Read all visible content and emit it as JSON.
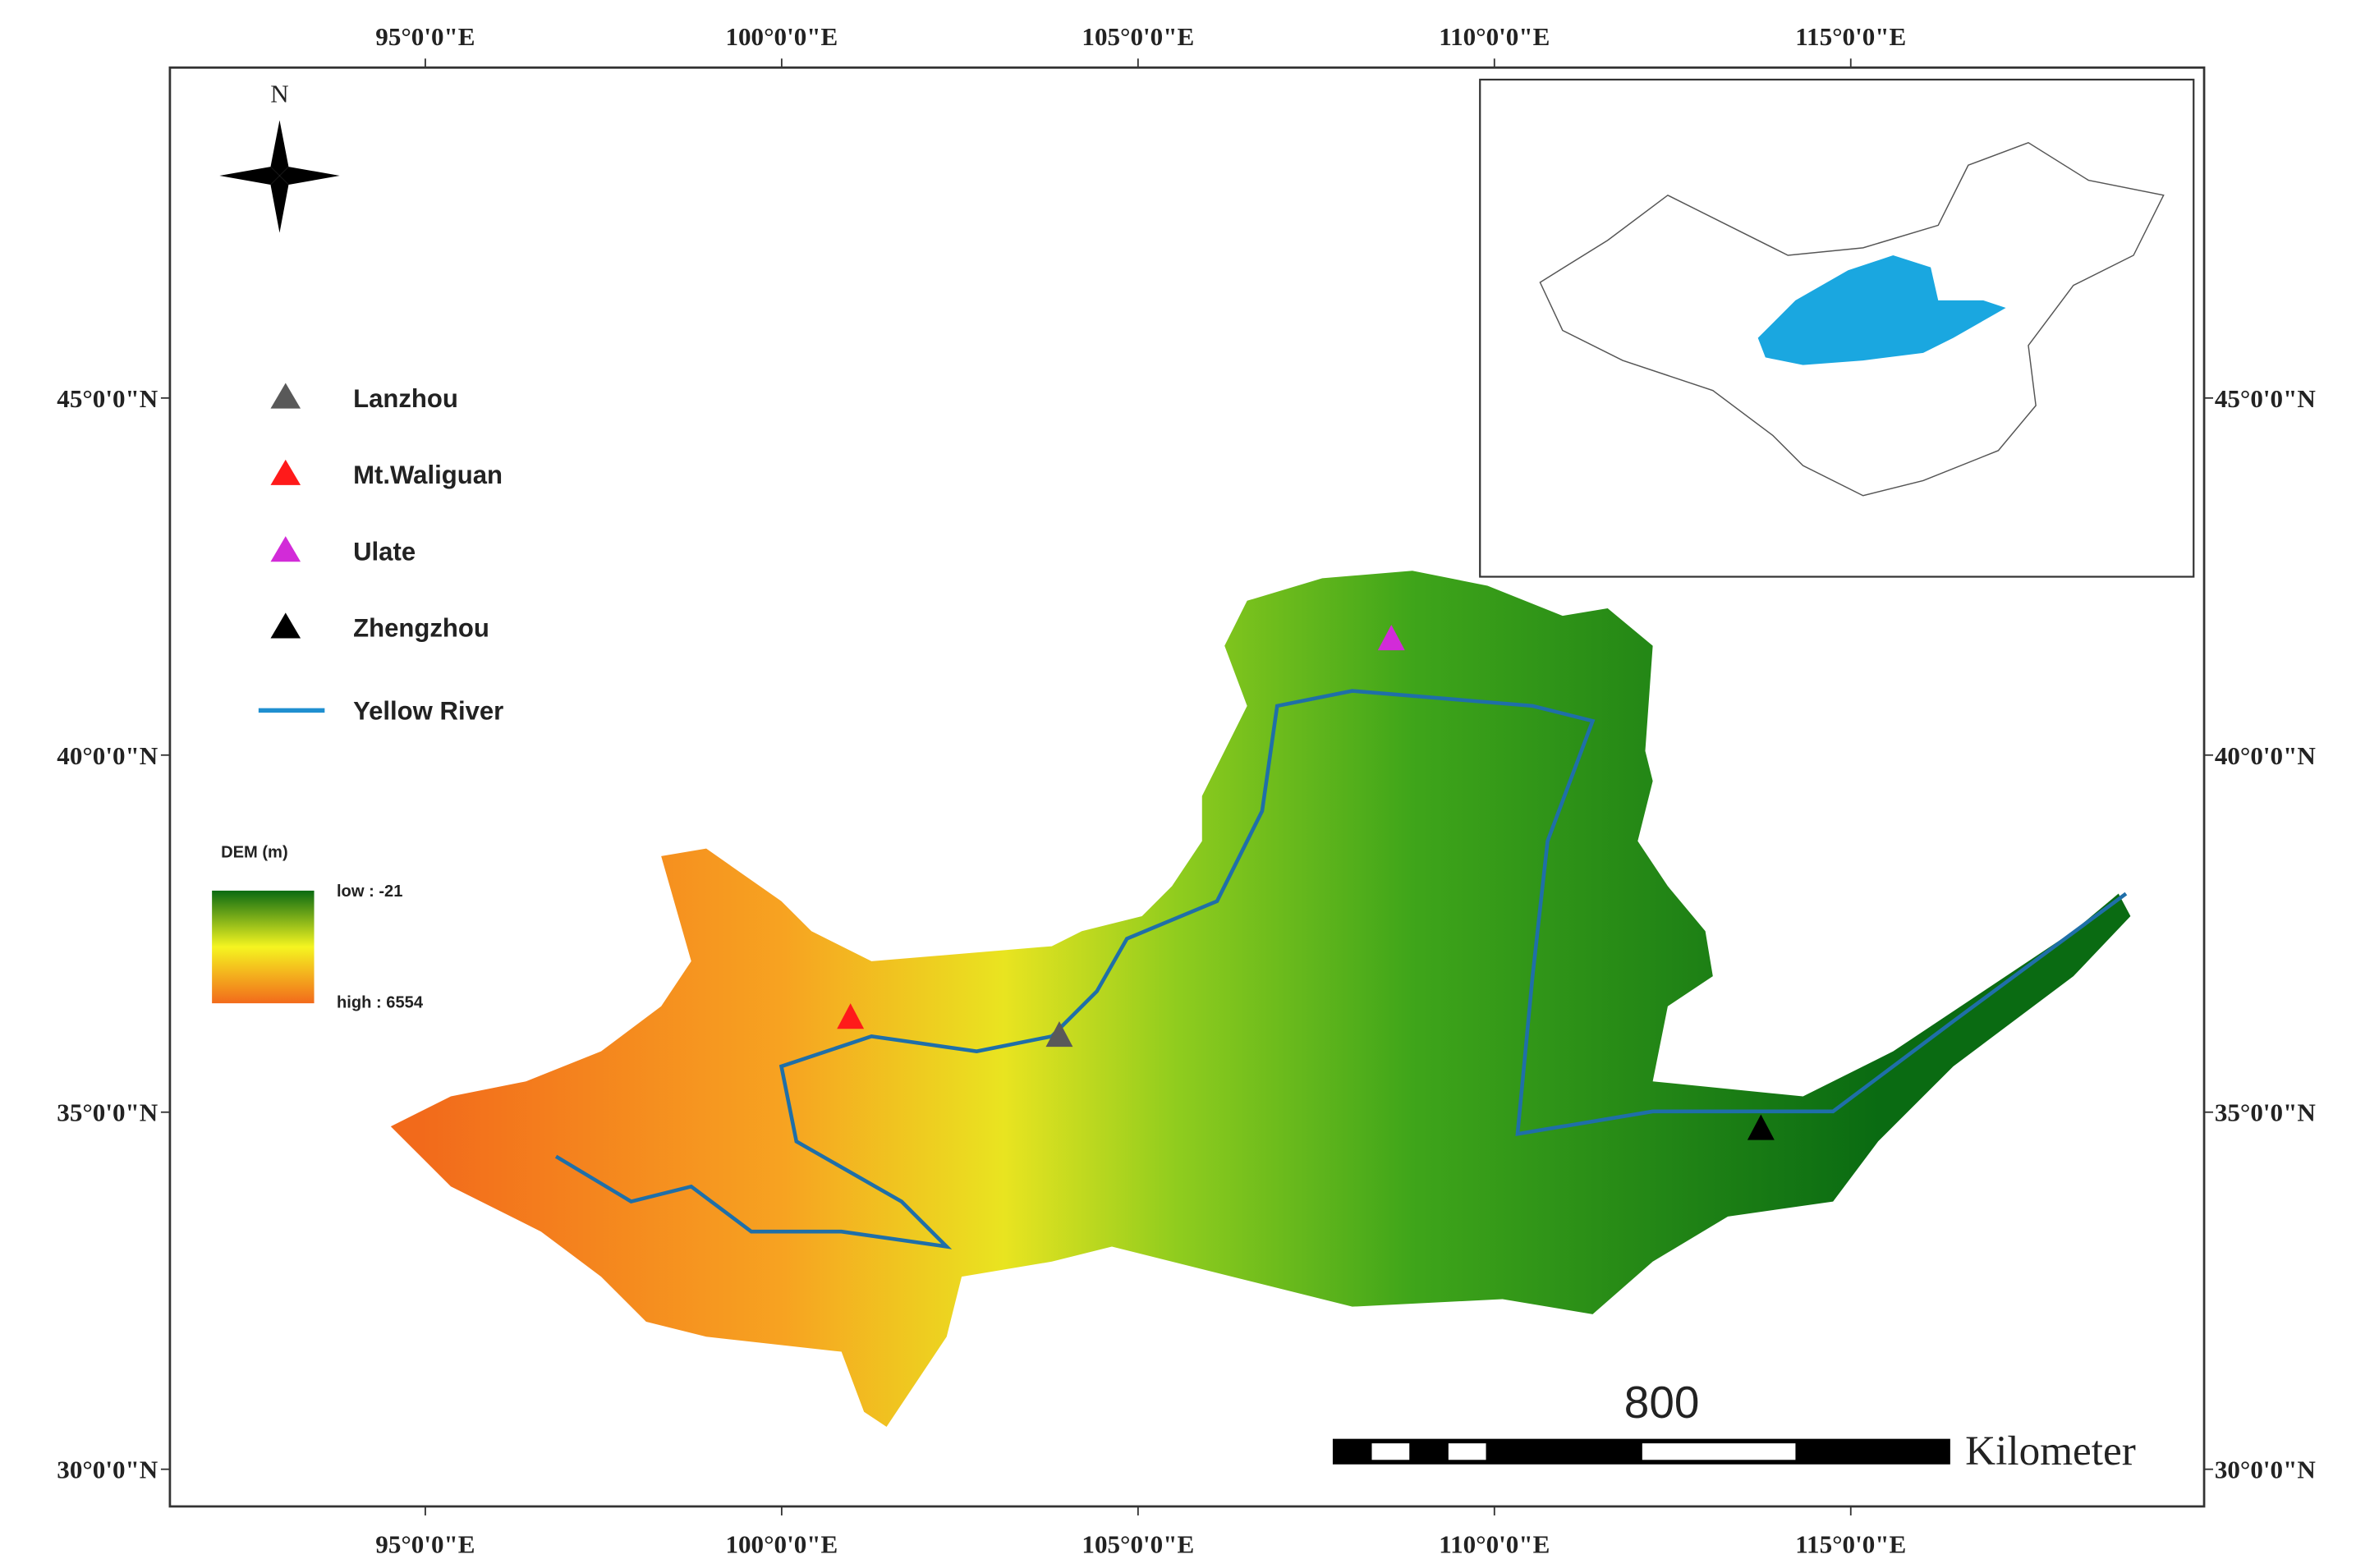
{
  "map": {
    "lon_ticks": [
      {
        "value": 95,
        "label": "95°0'0\"E"
      },
      {
        "value": 100,
        "label": "100°0'0\"E"
      },
      {
        "value": 105,
        "label": "105°0'0\"E"
      },
      {
        "value": 110,
        "label": "110°0'0\"E"
      },
      {
        "value": 115,
        "label": "115°0'0\"E"
      }
    ],
    "lat_ticks": [
      {
        "value": 45,
        "label": "45°0'0\"N"
      },
      {
        "value": 40,
        "label": "40°0'0\"N"
      },
      {
        "value": 35,
        "label": "35°0'0\"N"
      },
      {
        "value": 30,
        "label": "30°0'0\"N"
      }
    ],
    "north": "N",
    "legend": [
      {
        "label": "Lanzhou",
        "color": "#595959"
      },
      {
        "label": "Mt.Waliguan",
        "color": "#ff1a1a"
      },
      {
        "label": "Ulate",
        "color": "#d22bd8"
      },
      {
        "label": "Zhengzhou",
        "color": "#000000"
      },
      {
        "label": "Yellow River",
        "color": "#1f8fd0"
      }
    ],
    "dem_legend": {
      "title": "DEM (m)",
      "low": "low : -21",
      "high": "high : 6554"
    },
    "scale_bar": {
      "value": 800,
      "unit": "Kilometer"
    }
  }
}
